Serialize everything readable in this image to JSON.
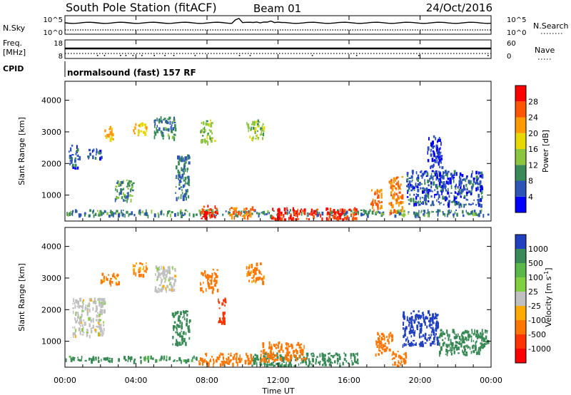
{
  "header": {
    "title": "South Pole Station (fitACF)",
    "beam": "Beam 01",
    "date": "24/Oct/2016"
  },
  "panels": {
    "nsky": {
      "label": "N.Sky",
      "ticks_left": [
        "10^5",
        "10^0"
      ],
      "ticks_right": [
        "10^5",
        "10^0"
      ],
      "right_label": "N.Search"
    },
    "freq": {
      "label_line1": "Freq.",
      "label_line2": "[MHz]",
      "ticks_left": [
        "18",
        "8"
      ],
      "ticks_right": [
        "60",
        "0"
      ],
      "right_label": "Nave"
    },
    "cpid": {
      "label": "CPID",
      "text": "normalsound (fast) 157 RF"
    }
  },
  "x_axis": {
    "label": "Time UT",
    "ticks": [
      "00:00",
      "04:00",
      "08:00",
      "12:00",
      "16:00",
      "20:00",
      "00:00"
    ],
    "range_hours": [
      0,
      24
    ]
  },
  "y_axis": {
    "label": "Slant Range [km]",
    "ticks": [
      "1000",
      "2000",
      "3000",
      "4000"
    ],
    "range_km": [
      180,
      4600
    ]
  },
  "power_scale": {
    "label": "Power [dB]",
    "ticks": [
      "4",
      "8",
      "12",
      "16",
      "20",
      "24",
      "28"
    ],
    "colors": [
      "#0000ff",
      "#2d55b8",
      "#3a8a57",
      "#8cc63f",
      "#e6d800",
      "#ff9900",
      "#ff5500",
      "#ff0000"
    ]
  },
  "velocity_scale": {
    "label": "Velocity [m s",
    "label_sup": "-1",
    "label_end": "]",
    "ticks": [
      "1000",
      "500",
      "100",
      "25",
      "-25",
      "-100",
      "-500",
      "-1000"
    ],
    "colors": [
      "#2040c0",
      "#3a8a57",
      "#5ab84a",
      "#80d040",
      "#c0c0c0",
      "#ffaa00",
      "#ff7700",
      "#ff3300",
      "#ff0000"
    ]
  },
  "chart_data": [
    {
      "type": "heatmap",
      "title": "Power",
      "xlabel": "Time UT",
      "ylabel": "Slant Range [km]",
      "x_unit": "hours UT",
      "xlim": [
        0,
        24
      ],
      "ylim": [
        180,
        4600
      ],
      "colorbar": {
        "label": "Power [dB]",
        "range": [
          0,
          32
        ]
      },
      "patches": [
        {
          "t0": 0.0,
          "t1": 24.0,
          "r0": 380,
          "r1": 560,
          "value": 9
        },
        {
          "t0": 7.6,
          "t1": 8.6,
          "r0": 280,
          "r1": 700,
          "value": 28
        },
        {
          "t0": 9.2,
          "t1": 10.6,
          "r0": 300,
          "r1": 650,
          "value": 24
        },
        {
          "t0": 11.6,
          "t1": 16.4,
          "r0": 250,
          "r1": 620,
          "value": 28
        },
        {
          "t0": 17.2,
          "t1": 17.8,
          "r0": 500,
          "r1": 1200,
          "value": 24
        },
        {
          "t0": 18.2,
          "t1": 19.0,
          "r0": 400,
          "r1": 1600,
          "value": 24
        },
        {
          "t0": 0.2,
          "t1": 0.8,
          "r0": 1900,
          "r1": 2600,
          "value": 6
        },
        {
          "t0": 1.2,
          "t1": 2.0,
          "r0": 2200,
          "r1": 2500,
          "value": 6
        },
        {
          "t0": 2.2,
          "t1": 2.8,
          "r0": 2800,
          "r1": 3200,
          "value": 20
        },
        {
          "t0": 3.8,
          "t1": 4.6,
          "r0": 2900,
          "r1": 3300,
          "value": 20
        },
        {
          "t0": 5.0,
          "t1": 6.2,
          "r0": 2800,
          "r1": 3500,
          "value": 10
        },
        {
          "t0": 7.6,
          "t1": 8.4,
          "r0": 2700,
          "r1": 3400,
          "value": 14
        },
        {
          "t0": 10.2,
          "t1": 11.2,
          "r0": 2800,
          "r1": 3400,
          "value": 14
        },
        {
          "t0": 2.8,
          "t1": 3.8,
          "r0": 800,
          "r1": 1500,
          "value": 10
        },
        {
          "t0": 6.2,
          "t1": 7.0,
          "r0": 900,
          "r1": 2300,
          "value": 8
        },
        {
          "t0": 19.2,
          "t1": 23.5,
          "r0": 700,
          "r1": 1800,
          "value": 6
        },
        {
          "t0": 20.4,
          "t1": 21.2,
          "r0": 1900,
          "r1": 2900,
          "value": 4
        }
      ]
    },
    {
      "type": "heatmap",
      "title": "Velocity",
      "xlabel": "Time UT",
      "ylabel": "Slant Range [km]",
      "x_unit": "hours UT",
      "xlim": [
        0,
        24
      ],
      "ylim": [
        180,
        4600
      ],
      "colorbar": {
        "label": "Velocity [m s-1]",
        "range": [
          -1000,
          1000
        ]
      },
      "patches": [
        {
          "t0": 0.0,
          "t1": 7.5,
          "r0": 400,
          "r1": 550,
          "value": 120
        },
        {
          "t0": 7.5,
          "t1": 10.5,
          "r0": 300,
          "r1": 650,
          "value": -150
        },
        {
          "t0": 10.5,
          "t1": 16.5,
          "r0": 250,
          "r1": 650,
          "value": 150
        },
        {
          "t0": 11.0,
          "t1": 13.5,
          "r0": 400,
          "r1": 1000,
          "value": -150
        },
        {
          "t0": 17.4,
          "t1": 18.4,
          "r0": 600,
          "r1": 1300,
          "value": -300
        },
        {
          "t0": 18.4,
          "t1": 19.2,
          "r0": 250,
          "r1": 700,
          "value": -150
        },
        {
          "t0": 19.0,
          "t1": 21.0,
          "r0": 900,
          "r1": 2000,
          "value": 900
        },
        {
          "t0": 21.0,
          "t1": 23.8,
          "r0": 600,
          "r1": 1400,
          "value": 300
        },
        {
          "t0": 2.0,
          "t1": 3.0,
          "r0": 2800,
          "r1": 3200,
          "value": -120
        },
        {
          "t0": 3.8,
          "t1": 4.6,
          "r0": 3100,
          "r1": 3500,
          "value": -120
        },
        {
          "t0": 5.0,
          "t1": 6.2,
          "r0": 2600,
          "r1": 3400,
          "value": 0
        },
        {
          "t0": 7.6,
          "t1": 8.6,
          "r0": 2600,
          "r1": 3300,
          "value": -200
        },
        {
          "t0": 8.6,
          "t1": 9.0,
          "r0": 1600,
          "r1": 2400,
          "value": -700
        },
        {
          "t0": 10.2,
          "t1": 11.2,
          "r0": 2900,
          "r1": 3500,
          "value": -120
        },
        {
          "t0": 0.4,
          "t1": 2.2,
          "r0": 1200,
          "r1": 2400,
          "value": 0
        },
        {
          "t0": 6.0,
          "t1": 7.0,
          "r0": 900,
          "r1": 2000,
          "value": 300
        }
      ]
    }
  ]
}
